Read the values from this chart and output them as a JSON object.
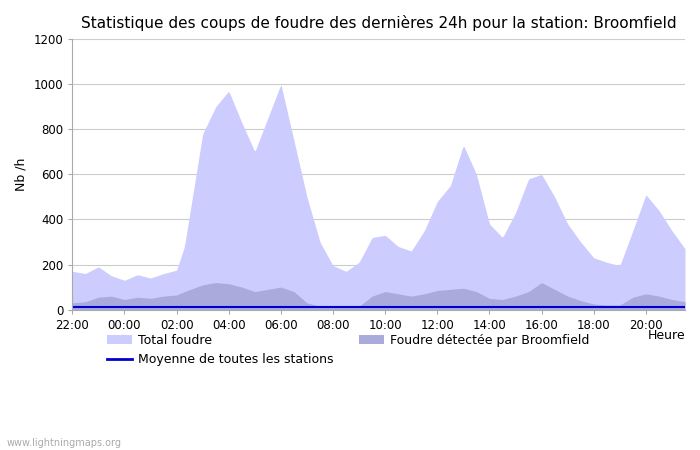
{
  "title": "Statistique des coups de foudre des dernières 24h pour la station: Broomfield",
  "xlabel": "Heure",
  "ylabel": "Nb /h",
  "watermark": "www.lightningmaps.org",
  "ylim": [
    0,
    1200
  ],
  "yticks": [
    0,
    200,
    400,
    600,
    800,
    1000,
    1200
  ],
  "xtick_labels": [
    "22:00",
    "00:00",
    "02:00",
    "04:00",
    "06:00",
    "08:00",
    "10:00",
    "12:00",
    "14:00",
    "16:00",
    "18:00",
    "20:00"
  ],
  "tick_hours": [
    0,
    2,
    4,
    6,
    8,
    10,
    12,
    14,
    16,
    18,
    20,
    22
  ],
  "total_hours": 23.5,
  "bg_color": "#ffffff",
  "grid_color": "#cccccc",
  "total_foudre_color": "#ccccff",
  "local_foudre_color": "#aaaadd",
  "mean_line_color": "#0000cc",
  "title_fontsize": 11,
  "label_fontsize": 9,
  "tick_fontsize": 8.5
}
